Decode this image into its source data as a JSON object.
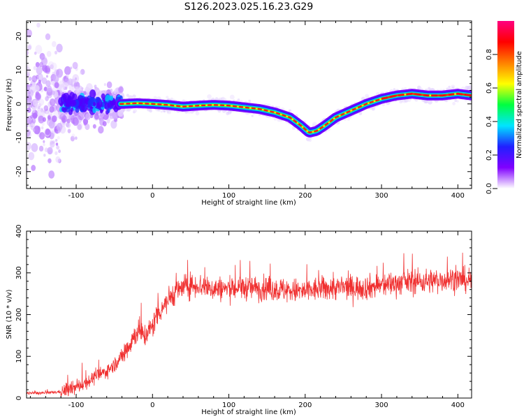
{
  "title": "S126.2023.025.16.23.G29",
  "chart_data": [
    {
      "type": "heatmap",
      "name": "spectrogram",
      "xlabel": "Height of straight line (km)",
      "ylabel": "Frequency (Hz)",
      "xlim": [
        -165,
        418
      ],
      "ylim": [
        -25,
        24.5
      ],
      "xticks": [
        -100,
        0,
        100,
        200,
        300,
        400
      ],
      "yticks": [
        -20,
        -10,
        0,
        10,
        20
      ],
      "colorbar": {
        "label": "Normalized spectral amplitude",
        "range": [
          0,
          1
        ],
        "ticks": [
          0.0,
          0.2,
          0.4,
          0.6,
          0.8
        ],
        "tick_labels": [
          "0.0",
          "0.2",
          "0.4",
          "0.6",
          "0.8"
        ],
        "colors": [
          "#ffffff",
          "#8000ff",
          "#2020ff",
          "#00e5ff",
          "#00ff40",
          "#ffff00",
          "#ff8000",
          "#ff0000",
          "#ff0080"
        ]
      },
      "ridge": {
        "x": [
          -40,
          -20,
          0,
          20,
          40,
          60,
          80,
          100,
          120,
          140,
          160,
          180,
          195,
          205,
          215,
          225,
          240,
          260,
          280,
          300,
          320,
          340,
          360,
          380,
          400,
          418
        ],
        "y": [
          0,
          0.2,
          0,
          -0.3,
          -0.8,
          -0.5,
          -0.3,
          -0.5,
          -1,
          -1.5,
          -2.5,
          -4,
          -6.5,
          -8.5,
          -8,
          -6.5,
          -4,
          -2,
          0,
          1.5,
          2.5,
          3,
          2.5,
          2.5,
          3,
          2.5
        ]
      }
    },
    {
      "type": "line",
      "name": "snr",
      "xlabel": "Height of straight line (km)",
      "ylabel": "SNR (10 * v/v)",
      "xlim": [
        -165,
        418
      ],
      "ylim": [
        0,
        400
      ],
      "xticks": [
        -100,
        0,
        100,
        200,
        300,
        400
      ],
      "yticks": [
        0,
        100,
        200,
        300,
        400
      ],
      "color": "#f03030",
      "series": [
        {
          "x": [
            -165,
            -140,
            -120,
            -100,
            -80,
            -60,
            -50,
            -40,
            -30,
            -20,
            -10,
            0,
            5,
            10,
            20,
            30,
            40,
            50,
            60,
            80,
            100,
            120,
            150,
            180,
            200,
            220,
            250,
            280,
            300,
            330,
            360,
            390,
            418
          ],
          "values": [
            12,
            12,
            15,
            25,
            45,
            65,
            80,
            100,
            130,
            160,
            150,
            170,
            200,
            210,
            235,
            255,
            265,
            270,
            270,
            262,
            262,
            265,
            262,
            258,
            255,
            262,
            265,
            265,
            270,
            278,
            280,
            285,
            282
          ]
        }
      ]
    }
  ]
}
